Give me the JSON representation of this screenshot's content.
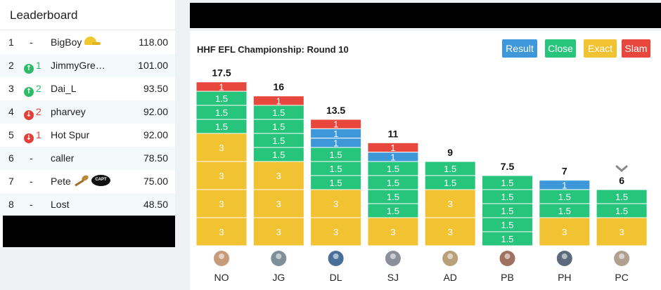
{
  "leaderboard": {
    "title": "Leaderboard",
    "rows": [
      {
        "rank": "1",
        "move": "-",
        "name": "BigBoy",
        "score": "118.00",
        "badges": [
          "cap-icon"
        ]
      },
      {
        "rank": "2",
        "move": "1",
        "dir": "up",
        "name": "JimmyGrea…",
        "score": "101.00"
      },
      {
        "rank": "3",
        "move": "2",
        "dir": "up",
        "name": "Dai_L",
        "score": "93.50"
      },
      {
        "rank": "4",
        "move": "2",
        "dir": "down",
        "name": "pharvey",
        "score": "92.00"
      },
      {
        "rank": "5",
        "move": "1",
        "dir": "down",
        "name": "Hot Spur",
        "score": "92.00"
      },
      {
        "rank": "6",
        "move": "-",
        "name": "caller",
        "score": "78.50"
      },
      {
        "rank": "7",
        "move": "-",
        "name": "Pete",
        "score": "75.00",
        "badges": [
          "spoon-icon",
          "capt-icon"
        ],
        "capt_text": "CAPT"
      },
      {
        "rank": "8",
        "move": "-",
        "name": "Lost",
        "score": "48.50"
      }
    ]
  },
  "chart": {
    "title": "HHF EFL Championship: Round 10",
    "legend": [
      {
        "label": "Result",
        "color": "#3d97d8"
      },
      {
        "label": "Close",
        "color": "#27c57b"
      },
      {
        "label": "Exact",
        "color": "#f1c232"
      },
      {
        "label": "Slam",
        "color": "#e7473d"
      }
    ]
  },
  "chart_data": {
    "type": "bar",
    "stacked": true,
    "categories": [
      "NO",
      "JG",
      "DL",
      "SJ",
      "AD",
      "PB",
      "PH",
      "PC"
    ],
    "totals": [
      "17.5",
      "16",
      "13.5",
      "11",
      "9",
      "7.5",
      "7",
      "6"
    ],
    "colors": {
      "Result": "#3d97d8",
      "Close": "#27c57b",
      "Exact": "#f1c232",
      "Slam": "#e7473d"
    },
    "stacks": [
      [
        {
          "t": "Exact",
          "v": 3
        },
        {
          "t": "Exact",
          "v": 3
        },
        {
          "t": "Exact",
          "v": 3
        },
        {
          "t": "Exact",
          "v": 3
        },
        {
          "t": "Close",
          "v": 1.5
        },
        {
          "t": "Close",
          "v": 1.5
        },
        {
          "t": "Close",
          "v": 1.5
        },
        {
          "t": "Slam",
          "v": 1
        }
      ],
      [
        {
          "t": "Exact",
          "v": 3
        },
        {
          "t": "Exact",
          "v": 3
        },
        {
          "t": "Exact",
          "v": 3
        },
        {
          "t": "Close",
          "v": 1.5
        },
        {
          "t": "Close",
          "v": 1.5
        },
        {
          "t": "Close",
          "v": 1.5
        },
        {
          "t": "Close",
          "v": 1.5
        },
        {
          "t": "Slam",
          "v": 1
        }
      ],
      [
        {
          "t": "Exact",
          "v": 3
        },
        {
          "t": "Exact",
          "v": 3
        },
        {
          "t": "Close",
          "v": 1.5
        },
        {
          "t": "Close",
          "v": 1.5
        },
        {
          "t": "Close",
          "v": 1.5
        },
        {
          "t": "Result",
          "v": 1
        },
        {
          "t": "Result",
          "v": 1
        },
        {
          "t": "Slam",
          "v": 1
        }
      ],
      [
        {
          "t": "Exact",
          "v": 3
        },
        {
          "t": "Close",
          "v": 1.5
        },
        {
          "t": "Close",
          "v": 1.5
        },
        {
          "t": "Close",
          "v": 1.5
        },
        {
          "t": "Close",
          "v": 1.5
        },
        {
          "t": "Result",
          "v": 1
        },
        {
          "t": "Slam",
          "v": 1
        }
      ],
      [
        {
          "t": "Exact",
          "v": 3
        },
        {
          "t": "Exact",
          "v": 3
        },
        {
          "t": "Close",
          "v": 1.5
        },
        {
          "t": "Close",
          "v": 1.5
        }
      ],
      [
        {
          "t": "Close",
          "v": 1.5
        },
        {
          "t": "Close",
          "v": 1.5
        },
        {
          "t": "Close",
          "v": 1.5
        },
        {
          "t": "Close",
          "v": 1.5
        },
        {
          "t": "Close",
          "v": 1.5
        }
      ],
      [
        {
          "t": "Exact",
          "v": 3
        },
        {
          "t": "Close",
          "v": 1.5
        },
        {
          "t": "Close",
          "v": 1.5
        },
        {
          "t": "Result",
          "v": 1
        }
      ],
      [
        {
          "t": "Exact",
          "v": 3
        },
        {
          "t": "Close",
          "v": 1.5
        },
        {
          "t": "Close",
          "v": 1.5
        }
      ]
    ],
    "avatar_colors": [
      "#c79a7a",
      "#7f8f9a",
      "#4a6e9a",
      "#8a8f99",
      "#b9a07a",
      "#a07060",
      "#5a6a7a",
      "#b0a090"
    ]
  }
}
